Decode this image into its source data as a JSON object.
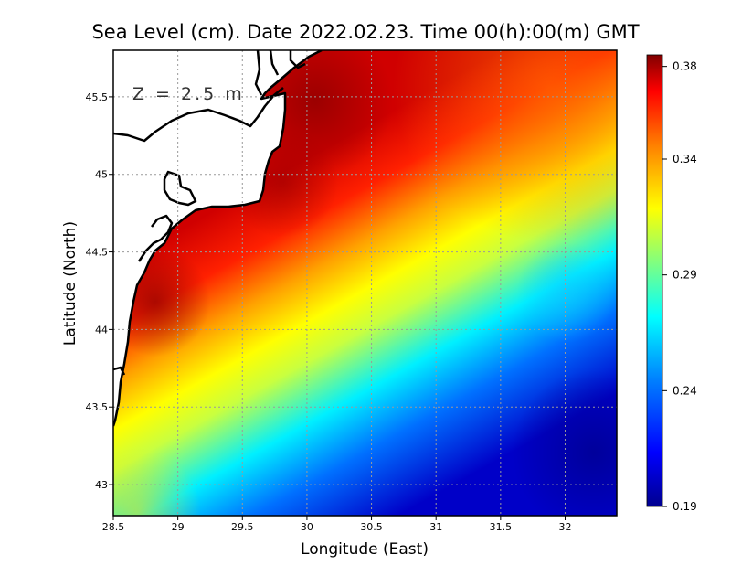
{
  "title": "Sea Level (cm). Date 2022.02.23. Time 00(h):00(m) GMT",
  "depth_label": "Z = 2.5 m",
  "x_axis": {
    "label": "Longitude (East)",
    "range": [
      28.5,
      32.4
    ],
    "ticks": [
      {
        "value": 28.5,
        "label": "28.5"
      },
      {
        "value": 29,
        "label": "29"
      },
      {
        "value": 29.5,
        "label": "29.5"
      },
      {
        "value": 30,
        "label": "30"
      },
      {
        "value": 30.5,
        "label": "30.5"
      },
      {
        "value": 31,
        "label": "31"
      },
      {
        "value": 31.5,
        "label": "31.5"
      },
      {
        "value": 32,
        "label": "32"
      }
    ]
  },
  "y_axis": {
    "label": "Latitude (North)",
    "range": [
      42.8,
      45.8
    ],
    "ticks": [
      {
        "value": 43,
        "label": "43"
      },
      {
        "value": 43.5,
        "label": "43.5"
      },
      {
        "value": 44,
        "label": "44"
      },
      {
        "value": 44.5,
        "label": "44.5"
      },
      {
        "value": 45,
        "label": "45"
      },
      {
        "value": 45.5,
        "label": "45.5"
      }
    ]
  },
  "colorbar": {
    "min": 0.19,
    "max": 0.385,
    "ticks": [
      {
        "value": 0.38,
        "label": "0.38"
      },
      {
        "value": 0.34,
        "label": "0.34"
      },
      {
        "value": 0.29,
        "label": "0.29"
      },
      {
        "value": 0.24,
        "label": "0.24"
      },
      {
        "value": 0.19,
        "label": "0.19"
      }
    ],
    "colors": [
      "#00008f",
      "#0000ff",
      "#0080ff",
      "#00ffff",
      "#80ff80",
      "#ffff00",
      "#ff8000",
      "#ff0000",
      "#800000"
    ]
  },
  "colors": {
    "land": "#ffffff",
    "coastline": "#000000",
    "grid": "#9a9a9a"
  }
}
